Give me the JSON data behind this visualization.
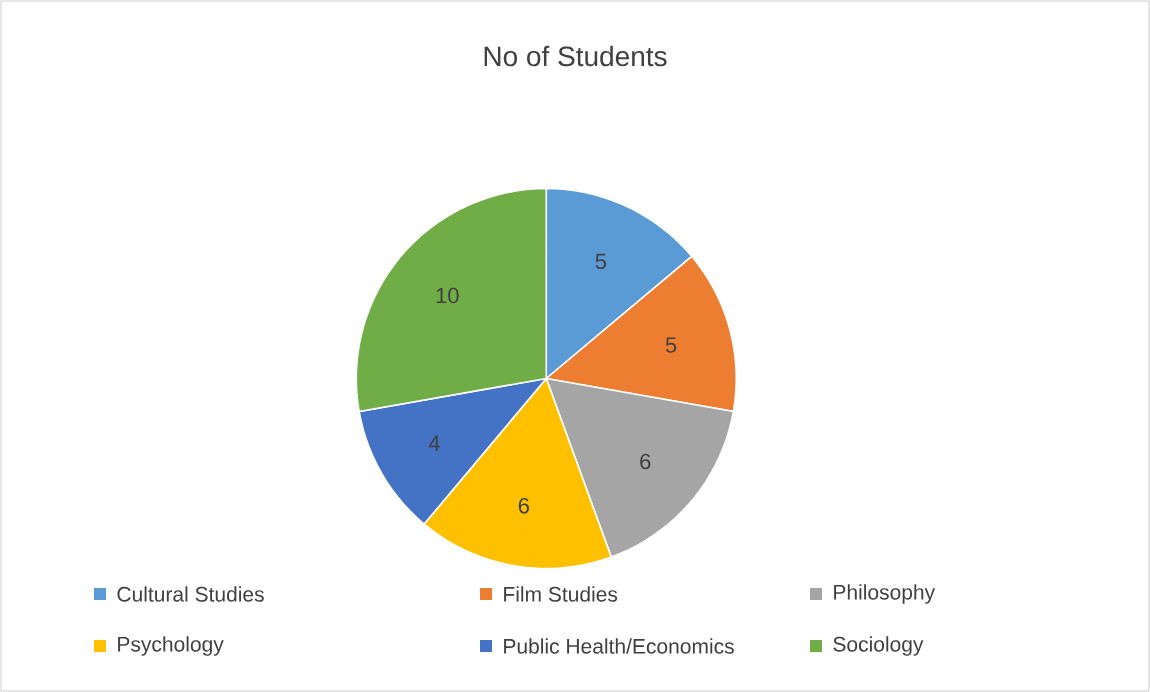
{
  "chart_data": {
    "type": "pie",
    "title": "No of Students",
    "categories": [
      "Cultural Studies",
      "Film Studies",
      "Philosophy",
      "Psychology",
      "Public Health/Economics",
      "Sociology"
    ],
    "values": [
      5,
      5,
      6,
      6,
      4,
      10
    ],
    "colors": [
      "#5b9bd5",
      "#ed7d31",
      "#a5a5a5",
      "#ffc000",
      "#4472c4",
      "#70ad47"
    ],
    "data_labels": true,
    "legend": "bottom"
  }
}
